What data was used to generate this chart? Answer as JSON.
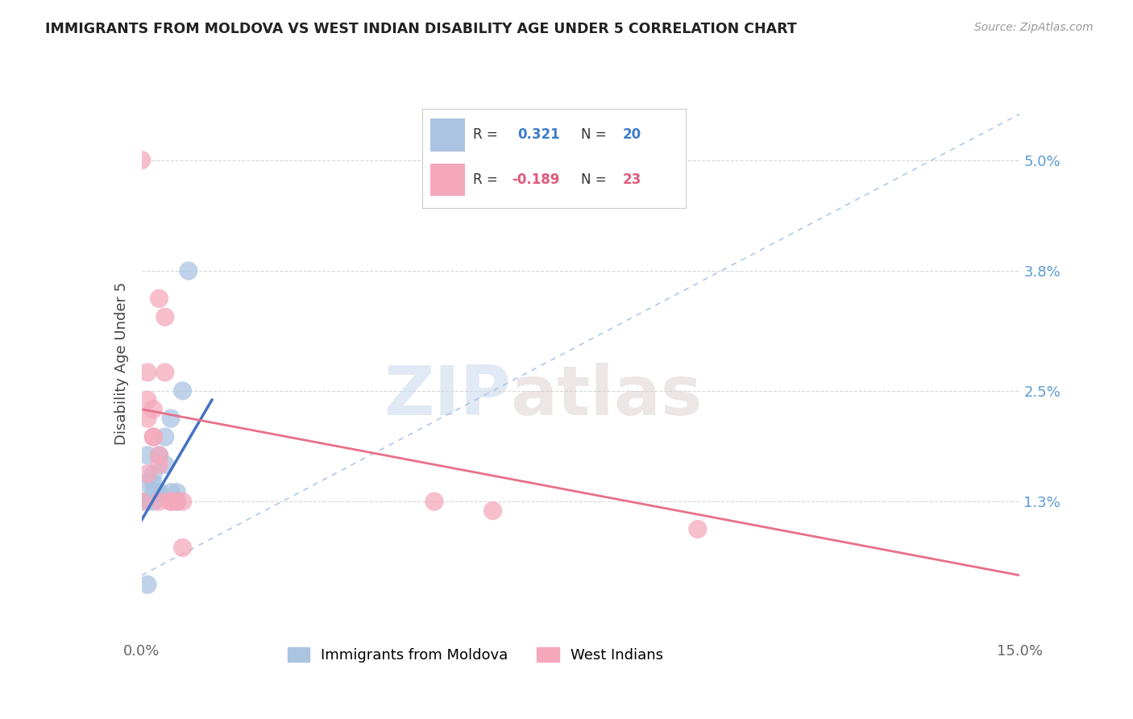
{
  "title": "IMMIGRANTS FROM MOLDOVA VS WEST INDIAN DISABILITY AGE UNDER 5 CORRELATION CHART",
  "source": "Source: ZipAtlas.com",
  "ylabel_label": "Disability Age Under 5",
  "legend1_r": "0.321",
  "legend1_n": "20",
  "legend2_r": "-0.189",
  "legend2_n": "23",
  "moldova_color": "#aac4e2",
  "west_indian_color": "#f5a8bc",
  "trendline_moldova_color": "#4472c4",
  "trendline_west_indian_color": "#e8708a",
  "dash_color": "#b0c8e8",
  "watermark_zip": "ZIP",
  "watermark_atlas": "atlas",
  "moldova_x": [
    0.0,
    0.001,
    0.001,
    0.001,
    0.002,
    0.002,
    0.002,
    0.002,
    0.003,
    0.003,
    0.003,
    0.004,
    0.004,
    0.005,
    0.005,
    0.006,
    0.006,
    0.007,
    0.008,
    0.001
  ],
  "moldova_y": [
    0.013,
    0.013,
    0.018,
    0.015,
    0.013,
    0.015,
    0.014,
    0.016,
    0.014,
    0.018,
    0.014,
    0.02,
    0.017,
    0.022,
    0.014,
    0.014,
    0.013,
    0.025,
    0.038,
    0.004
  ],
  "west_indian_x": [
    0.0,
    0.0,
    0.001,
    0.001,
    0.001,
    0.001,
    0.002,
    0.002,
    0.002,
    0.003,
    0.003,
    0.003,
    0.003,
    0.004,
    0.004,
    0.005,
    0.005,
    0.006,
    0.007,
    0.007,
    0.05,
    0.06,
    0.095
  ],
  "west_indian_y": [
    0.013,
    0.05,
    0.016,
    0.022,
    0.027,
    0.024,
    0.02,
    0.02,
    0.023,
    0.017,
    0.018,
    0.013,
    0.035,
    0.027,
    0.033,
    0.013,
    0.013,
    0.013,
    0.013,
    0.008,
    0.013,
    0.012,
    0.01
  ],
  "xlim": [
    0.0,
    0.15
  ],
  "ylim": [
    -0.002,
    0.058
  ],
  "ytick_vals": [
    0.013,
    0.025,
    0.038,
    0.05
  ],
  "ytick_labels": [
    "1.3%",
    "2.5%",
    "3.8%",
    "5.0%"
  ],
  "xtick_vals": [
    0.0,
    0.15
  ],
  "xtick_labels": [
    "0.0%",
    "15.0%"
  ],
  "grid_color": "#d8d8d8",
  "background_color": "#ffffff",
  "moldova_trendline_x0": 0.0,
  "moldova_trendline_x1": 0.012,
  "west_indian_trendline_x0": 0.0,
  "west_indian_trendline_x1": 0.15,
  "west_indian_trendline_y0": 0.023,
  "west_indian_trendline_y1": 0.005,
  "moldova_trendline_y0": 0.011,
  "moldova_trendline_y1": 0.024
}
